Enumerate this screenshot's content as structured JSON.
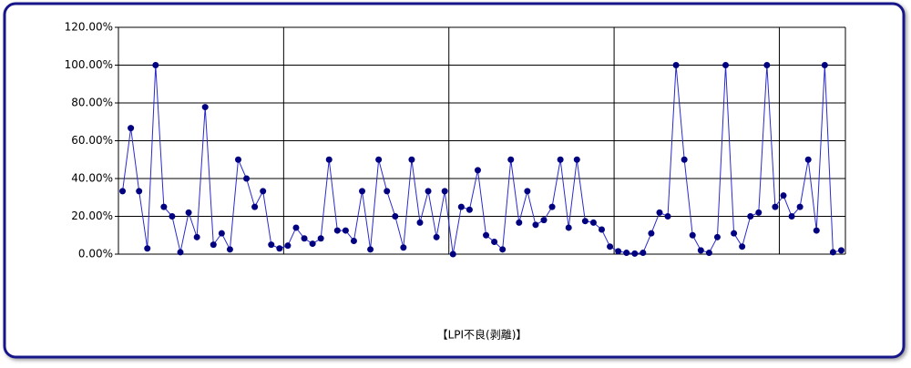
{
  "chart_data": {
    "type": "line",
    "x_label": "【LPI不良(剥離)】",
    "categories": [
      null,
      null,
      null,
      null,
      null,
      null,
      null,
      null,
      null,
      null,
      null,
      null,
      null,
      null,
      null,
      null,
      null,
      null,
      null,
      null,
      null,
      null,
      null,
      null,
      null,
      null,
      null,
      null,
      null,
      null,
      null,
      null,
      null,
      null,
      null,
      null,
      null,
      null,
      null,
      null,
      null,
      null,
      null,
      null,
      null,
      null,
      null,
      null,
      null,
      null,
      null,
      null,
      null,
      null,
      null,
      null,
      null,
      null,
      null,
      null,
      null,
      null,
      null,
      null,
      null,
      null,
      null,
      null,
      null,
      null,
      null,
      null,
      null,
      null,
      null,
      null,
      null,
      null,
      null,
      null,
      null,
      null,
      null,
      null,
      null,
      null,
      null,
      null
    ],
    "series": [
      {
        "color": "#2a2acc",
        "marker_color": "#000080",
        "values": [
          33.3,
          66.7,
          33.3,
          3,
          100,
          25,
          20,
          1,
          22,
          9,
          77.8,
          5,
          11,
          2.5,
          50,
          40,
          25,
          33.3,
          5,
          3,
          4.5,
          14,
          8.3,
          5.5,
          8.3,
          50,
          12.5,
          12.5,
          7,
          33.3,
          2.5,
          50,
          33.3,
          20,
          3.5,
          50,
          16.7,
          33.3,
          9,
          33.3,
          0,
          25,
          23.5,
          44.4,
          10,
          6.5,
          2.5,
          50,
          16.7,
          33.3,
          15.5,
          18,
          25,
          50,
          14,
          50,
          17.5,
          16.7,
          13,
          4,
          1.5,
          0.7,
          0.3,
          0.7,
          11,
          22,
          20,
          100,
          50,
          10,
          2,
          0.7,
          9,
          100,
          11,
          4,
          20,
          22,
          100,
          25,
          31,
          20,
          25,
          50,
          12.5,
          100,
          1,
          2
        ]
      }
    ],
    "ylim": [
      0,
      120
    ],
    "yticks": [
      {
        "value": 0,
        "label": "0.00%"
      },
      {
        "value": 20,
        "label": "20.00%"
      },
      {
        "value": 40,
        "label": "40.00%"
      },
      {
        "value": 60,
        "label": "60.00%"
      },
      {
        "value": 80,
        "label": "80.00%"
      },
      {
        "value": 100,
        "label": "100.00%"
      },
      {
        "value": 120,
        "label": "120.00%"
      }
    ],
    "grid": true
  }
}
